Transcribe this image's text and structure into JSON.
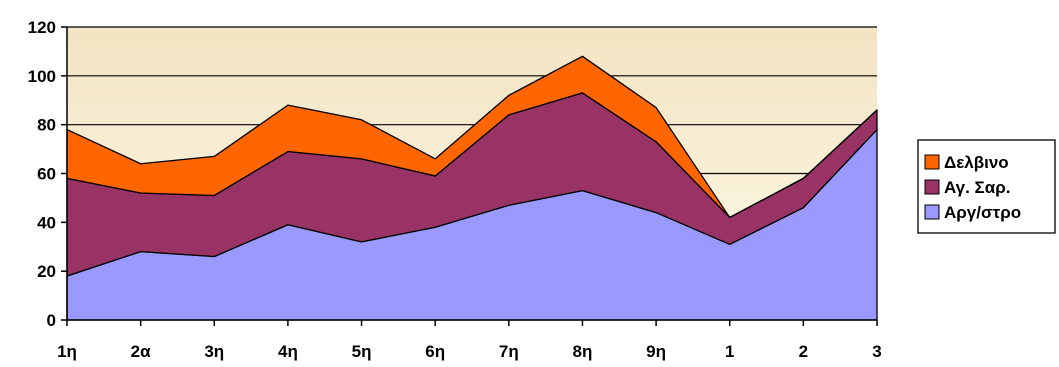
{
  "chart_data": {
    "type": "area",
    "stacked": true,
    "categories": [
      "1η",
      "2α",
      "3η",
      "4η",
      "5η",
      "6η",
      "7η",
      "8η",
      "9η",
      "1",
      "2",
      "3"
    ],
    "series": [
      {
        "name": "Αργ/στρο",
        "values": [
          18,
          28,
          26,
          39,
          32,
          38,
          47,
          53,
          44,
          31,
          46,
          78
        ],
        "color": "#9999ff"
      },
      {
        "name": "Αγ. Σαρ.",
        "values": [
          40,
          24,
          25,
          30,
          34,
          21,
          37,
          40,
          29,
          11,
          12,
          8
        ],
        "color": "#993366"
      },
      {
        "name": "Δελβινο",
        "values": [
          20,
          12,
          16,
          19,
          16,
          7,
          8,
          15,
          14,
          0,
          0,
          0
        ],
        "color": "#ff6600"
      }
    ],
    "ylim": [
      0,
      120
    ],
    "yticks": [
      "0",
      "20",
      "40",
      "60",
      "80",
      "100",
      "120"
    ],
    "grid": true,
    "plot_background": "#ffffcc",
    "legend_position": "right"
  }
}
